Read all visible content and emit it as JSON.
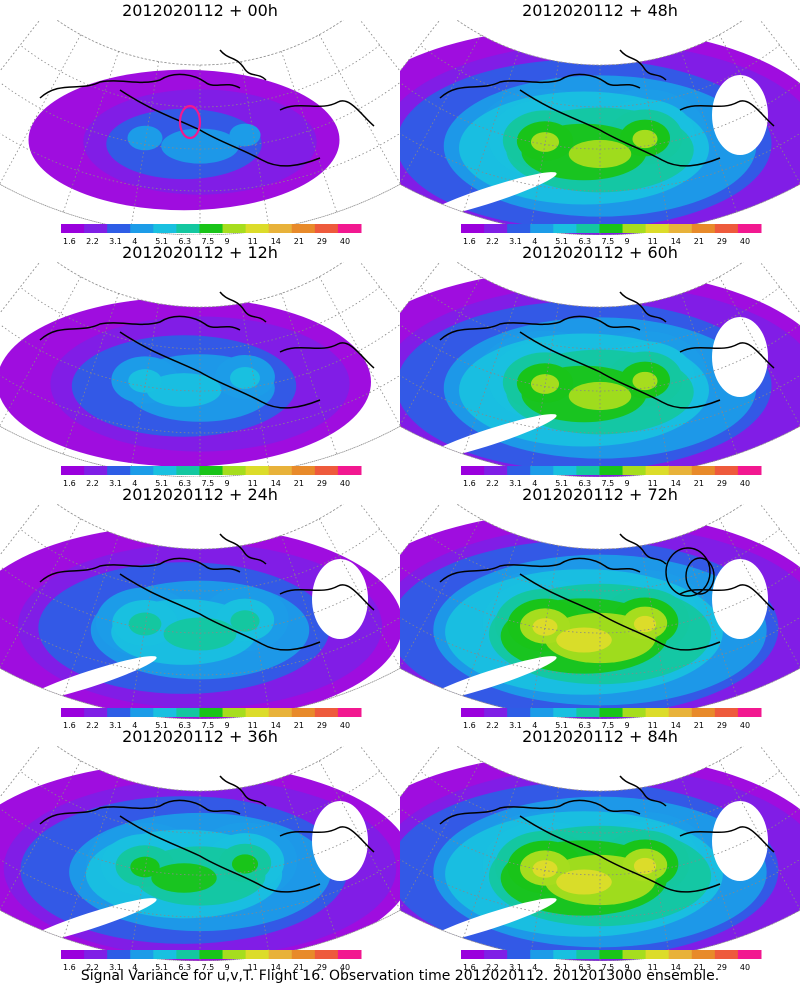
{
  "panels": [
    {
      "title": "2012020112 + 00h",
      "intensity": 0.35,
      "extent": 0.55,
      "highlight": "red-contour"
    },
    {
      "title": "2012020112 + 48h",
      "intensity": 0.75,
      "extent": 1.0
    },
    {
      "title": "2012020112 + 12h",
      "intensity": 0.5,
      "extent": 0.7
    },
    {
      "title": "2012020112 + 60h",
      "intensity": 0.8,
      "extent": 1.0
    },
    {
      "title": "2012020112 + 24h",
      "intensity": 0.6,
      "extent": 0.85
    },
    {
      "title": "2012020112 + 72h",
      "intensity": 0.85,
      "extent": 1.0,
      "highlight": "black-contour"
    },
    {
      "title": "2012020112 + 36h",
      "intensity": 0.65,
      "extent": 0.9
    },
    {
      "title": "2012020112 + 84h",
      "intensity": 0.9,
      "extent": 1.0
    }
  ],
  "colorbar": {
    "labels": [
      "1.6",
      "2.2",
      "3.1",
      "4",
      "5.1",
      "6.3",
      "7.5",
      "9",
      "11",
      "14",
      "21",
      "29",
      "40"
    ],
    "colors": [
      "#9a00dd",
      "#7f1fe6",
      "#2e5de6",
      "#1c9ce8",
      "#19c0e0",
      "#14c7a0",
      "#19c419",
      "#a6dd1e",
      "#dcdc2a",
      "#e8b23a",
      "#e88a2a",
      "#ee5a3c",
      "#f21890"
    ]
  },
  "caption": "Signal Variance for u,v,T. Flight 16. Observation time 2012020112. 2012013000 ensemble."
}
